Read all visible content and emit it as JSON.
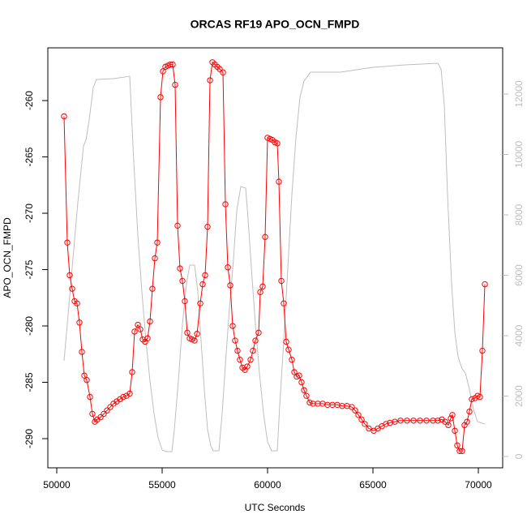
{
  "chart_data": {
    "type": "line",
    "title": "ORCAS RF19 APO_OCN_FMPD",
    "x_label": "UTC Seconds",
    "y_label": "APO_OCN_FMPD",
    "xlim": [
      49577,
      71154
    ],
    "ylim": [
      -292.59,
      -255.32
    ],
    "y2lim": [
      -376,
      13530
    ],
    "xticks": [
      50000,
      55000,
      60000,
      65000,
      70000
    ],
    "yticks": [
      -290,
      -285,
      -280,
      -275,
      -270,
      -265,
      -260
    ],
    "y2ticks": [
      0,
      2000,
      4000,
      6000,
      8000,
      10000,
      12000
    ],
    "series": [
      {
        "color": "#bebebe",
        "axis": "y2",
        "x": [
          50346,
          50500,
          50731,
          50999,
          51269,
          51385,
          51538,
          51731,
          51885,
          52692,
          53462,
          53654,
          53846,
          54038,
          54231,
          54423,
          54615,
          54808,
          55000,
          55192,
          55462,
          55577,
          55769,
          55962,
          56154,
          56308,
          56538,
          56692,
          56846,
          57000,
          57154,
          57308,
          57423,
          57692,
          57846,
          58000,
          58192,
          58385,
          58538,
          58731,
          58962,
          59077,
          59231,
          59423,
          59615,
          59808,
          60000,
          60192,
          60462,
          60577,
          60769,
          60962,
          61154,
          61346,
          61538,
          61731,
          62038,
          63462,
          65000,
          66538,
          68077,
          68231,
          68385,
          68538,
          68731,
          68885,
          69038,
          69231,
          69385,
          69577,
          69769,
          69962,
          70308
        ],
        "values": [
          3168,
          4376,
          6255,
          8403,
          10282,
          10470,
          11141,
          12215,
          12483,
          12510,
          12590,
          9745,
          7329,
          5450,
          3839,
          2497,
          1423,
          617,
          215,
          161,
          161,
          886,
          2497,
          4376,
          5718,
          6336,
          6336,
          5450,
          3839,
          2228,
          886,
          349,
          188,
          188,
          1423,
          3034,
          4913,
          6523,
          8134,
          8940,
          8886,
          7866,
          6255,
          4376,
          2765,
          1423,
          483,
          188,
          188,
          1691,
          3839,
          6255,
          8671,
          10550,
          11893,
          12430,
          12725,
          12725,
          12886,
          12966,
          13020,
          12832,
          11624,
          8671,
          5718,
          4107,
          3302,
          2899,
          2765,
          2228,
          1557,
          1154,
          1074
        ]
      },
      {
        "color": "#ff0000",
        "x": [
          50346,
          50500,
          50615,
          50731,
          50846,
          50962,
          51077,
          51192,
          51308,
          51423,
          51577,
          51692,
          51808,
          51923,
          52077,
          52231,
          52385,
          52538,
          52692,
          52846,
          53000,
          53154,
          53308,
          53462,
          53577,
          53692,
          53846,
          53962,
          54077,
          54192,
          54308,
          54423,
          54538,
          54654,
          54769,
          54923,
          55038,
          55154,
          55269,
          55385,
          55500,
          55615,
          55731,
          55846,
          55962,
          56077,
          56192,
          56308,
          56423,
          56538,
          56654,
          56808,
          56923,
          57038,
          57154,
          57269,
          57385,
          57500,
          57615,
          57731,
          57885,
          58000,
          58115,
          58231,
          58346,
          58462,
          58577,
          58692,
          58808,
          58923,
          59038,
          59192,
          59308,
          59423,
          59577,
          59654,
          59769,
          59885,
          60000,
          60115,
          60231,
          60346,
          60462,
          60538,
          60654,
          60769,
          60885,
          61000,
          61154,
          61269,
          61385,
          61500,
          61615,
          61731,
          61846,
          62000,
          62154,
          62385,
          62615,
          62846,
          63077,
          63308,
          63538,
          63769,
          64000,
          64154,
          64308,
          64462,
          64615,
          64808,
          65038,
          65231,
          65423,
          65615,
          65808,
          66038,
          66308,
          66615,
          66923,
          67231,
          67538,
          67846,
          68077,
          68269,
          68423,
          68577,
          68692,
          68769,
          68885,
          69000,
          69115,
          69231,
          69346,
          69462,
          69577,
          69692,
          69846,
          69962,
          70077,
          70192,
          70308
        ],
        "values": [
          -261.4,
          -272.6,
          -275.5,
          -276.7,
          -277.8,
          -278.0,
          -279.7,
          -282.3,
          -284.4,
          -284.8,
          -286.3,
          -287.8,
          -288.5,
          -288.3,
          -288.1,
          -287.8,
          -287.5,
          -287.2,
          -286.9,
          -286.7,
          -286.5,
          -286.3,
          -286.2,
          -286.0,
          -284.1,
          -280.5,
          -279.9,
          -280.3,
          -281.2,
          -281.4,
          -281.1,
          -279.6,
          -276.7,
          -274.0,
          -272.6,
          -259.7,
          -257.4,
          -257.0,
          -256.9,
          -256.8,
          -256.8,
          -258.6,
          -271.1,
          -274.9,
          -276.0,
          -277.8,
          -280.6,
          -281.1,
          -281.2,
          -281.3,
          -280.7,
          -278.0,
          -276.3,
          -275.5,
          -271.2,
          -258.2,
          -256.6,
          -256.8,
          -257.0,
          -257.2,
          -257.5,
          -269.2,
          -274.8,
          -276.4,
          -280.0,
          -281.3,
          -282.2,
          -283.0,
          -283.7,
          -283.9,
          -283.6,
          -283.0,
          -282.2,
          -281.3,
          -280.6,
          -277.0,
          -276.5,
          -272.1,
          -263.3,
          -263.4,
          -263.5,
          -263.7,
          -263.8,
          -267.2,
          -276.0,
          -278.0,
          -281.4,
          -282.1,
          -283.0,
          -284.1,
          -284.5,
          -284.4,
          -285.0,
          -285.7,
          -286.2,
          -286.8,
          -286.9,
          -286.9,
          -286.9,
          -287.0,
          -287.0,
          -287.0,
          -287.1,
          -287.1,
          -287.2,
          -287.5,
          -287.9,
          -288.3,
          -288.7,
          -289.1,
          -289.3,
          -289.1,
          -288.9,
          -288.7,
          -288.6,
          -288.5,
          -288.4,
          -288.4,
          -288.4,
          -288.4,
          -288.4,
          -288.4,
          -288.4,
          -288.3,
          -288.5,
          -288.8,
          -288.2,
          -287.9,
          -289.3,
          -290.6,
          -291.1,
          -291.1,
          -288.8,
          -288.5,
          -287.6,
          -286.5,
          -286.4,
          -286.2,
          -286.3,
          -282.2,
          -276.3
        ]
      }
    ]
  }
}
